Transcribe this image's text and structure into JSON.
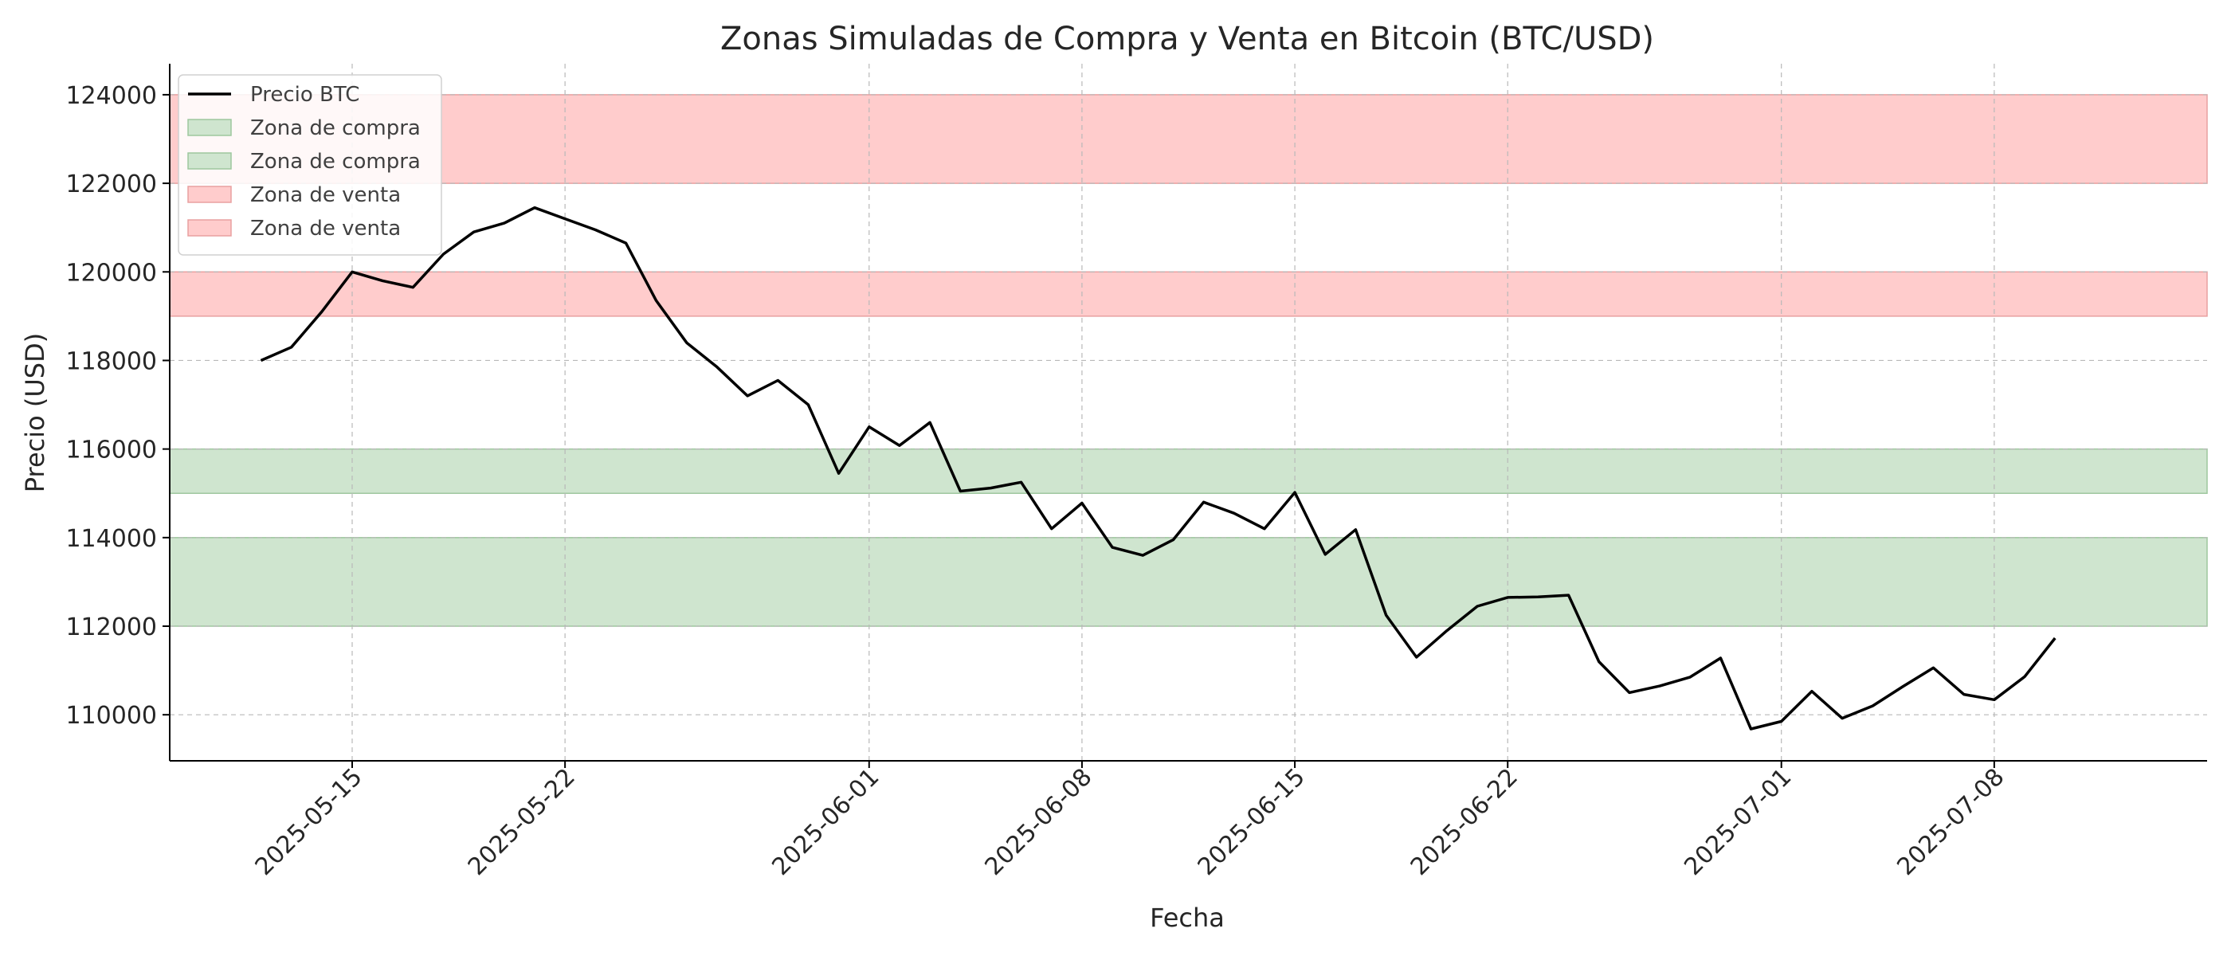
{
  "chart_data": {
    "type": "line",
    "title": "Zonas Simuladas de Compra y Venta en Bitcoin (BTC/USD)",
    "xlabel": "Fecha",
    "ylabel": "Precio (USD)",
    "xlim": [
      "2025-05-09",
      "2025-07-15"
    ],
    "ylim": [
      108960,
      124700
    ],
    "x_ticks": [
      "2025-05-15",
      "2025-05-22",
      "2025-06-01",
      "2025-06-08",
      "2025-06-15",
      "2025-06-22",
      "2025-07-01",
      "2025-07-08"
    ],
    "y_ticks": [
      110000,
      112000,
      114000,
      116000,
      118000,
      120000,
      122000,
      124000
    ],
    "grid": true,
    "legend_position": "top-left",
    "series": [
      {
        "name": "Precio BTC",
        "color": "#000000",
        "x": [
          "2025-05-12",
          "2025-05-13",
          "2025-05-14",
          "2025-05-15",
          "2025-05-16",
          "2025-05-17",
          "2025-05-18",
          "2025-05-19",
          "2025-05-20",
          "2025-05-21",
          "2025-05-22",
          "2025-05-23",
          "2025-05-24",
          "2025-05-25",
          "2025-05-26",
          "2025-05-27",
          "2025-05-28",
          "2025-05-29",
          "2025-05-30",
          "2025-05-31",
          "2025-06-01",
          "2025-06-02",
          "2025-06-03",
          "2025-06-04",
          "2025-06-05",
          "2025-06-06",
          "2025-06-07",
          "2025-06-08",
          "2025-06-09",
          "2025-06-10",
          "2025-06-11",
          "2025-06-12",
          "2025-06-13",
          "2025-06-14",
          "2025-06-15",
          "2025-06-16",
          "2025-06-17",
          "2025-06-18",
          "2025-06-19",
          "2025-06-20",
          "2025-06-21",
          "2025-06-22",
          "2025-06-23",
          "2025-06-24",
          "2025-06-25",
          "2025-06-26",
          "2025-06-27",
          "2025-06-28",
          "2025-06-29",
          "2025-06-30",
          "2025-07-01",
          "2025-07-02",
          "2025-07-03",
          "2025-07-04",
          "2025-07-05",
          "2025-07-06",
          "2025-07-07",
          "2025-07-08",
          "2025-07-09",
          "2025-07-10",
          "2025-07-11",
          "2025-07-12"
        ],
        "y": [
          118000,
          118300,
          119100,
          120000,
          119800,
          119650,
          120400,
          120900,
          121100,
          121450,
          121200,
          120950,
          120650,
          119350,
          118400,
          117850,
          117200,
          117550,
          117000,
          115450,
          116500,
          116080,
          116600,
          115050,
          115120,
          115250,
          114200,
          114780,
          113780,
          113600,
          113950,
          114800,
          114550,
          114200,
          115020,
          113620,
          114180,
          112250,
          111300,
          111900,
          112450,
          112650,
          112660,
          112700,
          111200,
          110500,
          110650,
          110850,
          111280,
          109680,
          109850,
          110530,
          109920,
          110200,
          110640,
          111060,
          110460,
          110340,
          110860,
          111730,
          null,
          null
        ]
      }
    ],
    "zones": [
      {
        "name": "Zona de compra",
        "color": "#cfe5cf",
        "range": [
          115000,
          116000
        ]
      },
      {
        "name": "Zona de compra",
        "color": "#cfe5cf",
        "range": [
          112000,
          114000
        ]
      },
      {
        "name": "Zona de venta",
        "color": "#ffcccc",
        "range": [
          122000,
          124000
        ]
      },
      {
        "name": "Zona de venta",
        "color": "#ffcccc",
        "range": [
          119000,
          120000
        ]
      }
    ]
  }
}
